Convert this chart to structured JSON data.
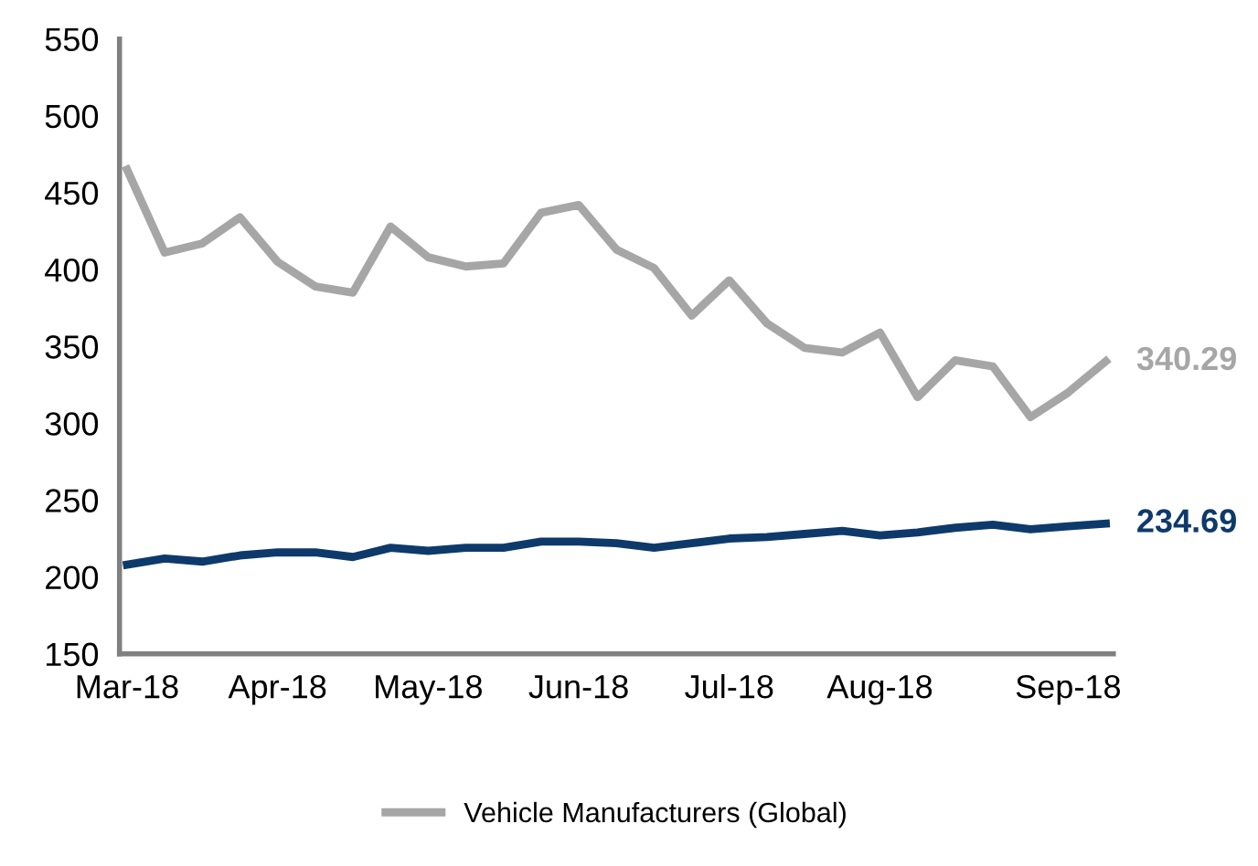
{
  "chart_data": {
    "type": "line",
    "categories": [
      "Mar-18",
      null,
      null,
      null,
      "Apr-18",
      null,
      null,
      null,
      "May-18",
      null,
      null,
      null,
      "Jun-18",
      null,
      null,
      null,
      "Jul-18",
      null,
      null,
      null,
      "Aug-18",
      null,
      null,
      null,
      null,
      "Sep-18",
      null
    ],
    "series": [
      {
        "color": "#0e3a6b",
        "values": [
          208,
          212,
          210,
          214,
          216,
          216,
          213,
          219,
          217,
          219,
          219,
          223,
          223,
          222,
          219,
          222,
          225,
          226,
          228,
          230,
          227,
          229,
          232,
          234,
          231,
          233,
          234.69
        ],
        "value_labels": [
          null,
          null,
          null,
          null,
          null,
          null,
          null,
          null,
          null,
          null,
          null,
          null,
          null,
          null,
          null,
          null,
          null,
          null,
          null,
          null,
          null,
          null,
          null,
          null,
          null,
          null,
          "234.69"
        ]
      },
      {
        "name": "Vehicle Manufacturers (Global)",
        "color": "#a6a6a6",
        "values": [
          465,
          411,
          417,
          434,
          405,
          389,
          385,
          428,
          408,
          402,
          404,
          437,
          442,
          413,
          401,
          370,
          393,
          365,
          349,
          346,
          359,
          317,
          341,
          337,
          304,
          320,
          340.29
        ],
        "value_labels": [
          null,
          null,
          null,
          null,
          null,
          null,
          null,
          null,
          null,
          null,
          null,
          null,
          null,
          null,
          null,
          null,
          null,
          null,
          null,
          null,
          null,
          null,
          null,
          null,
          null,
          null,
          "340.29"
        ]
      }
    ],
    "ylim": [
      150,
      550
    ],
    "yticks": [
      150,
      200,
      250,
      300,
      350,
      400,
      450,
      500,
      550
    ],
    "grid": false,
    "legend": "bottom",
    "marker": "none",
    "line_style": "solid"
  }
}
